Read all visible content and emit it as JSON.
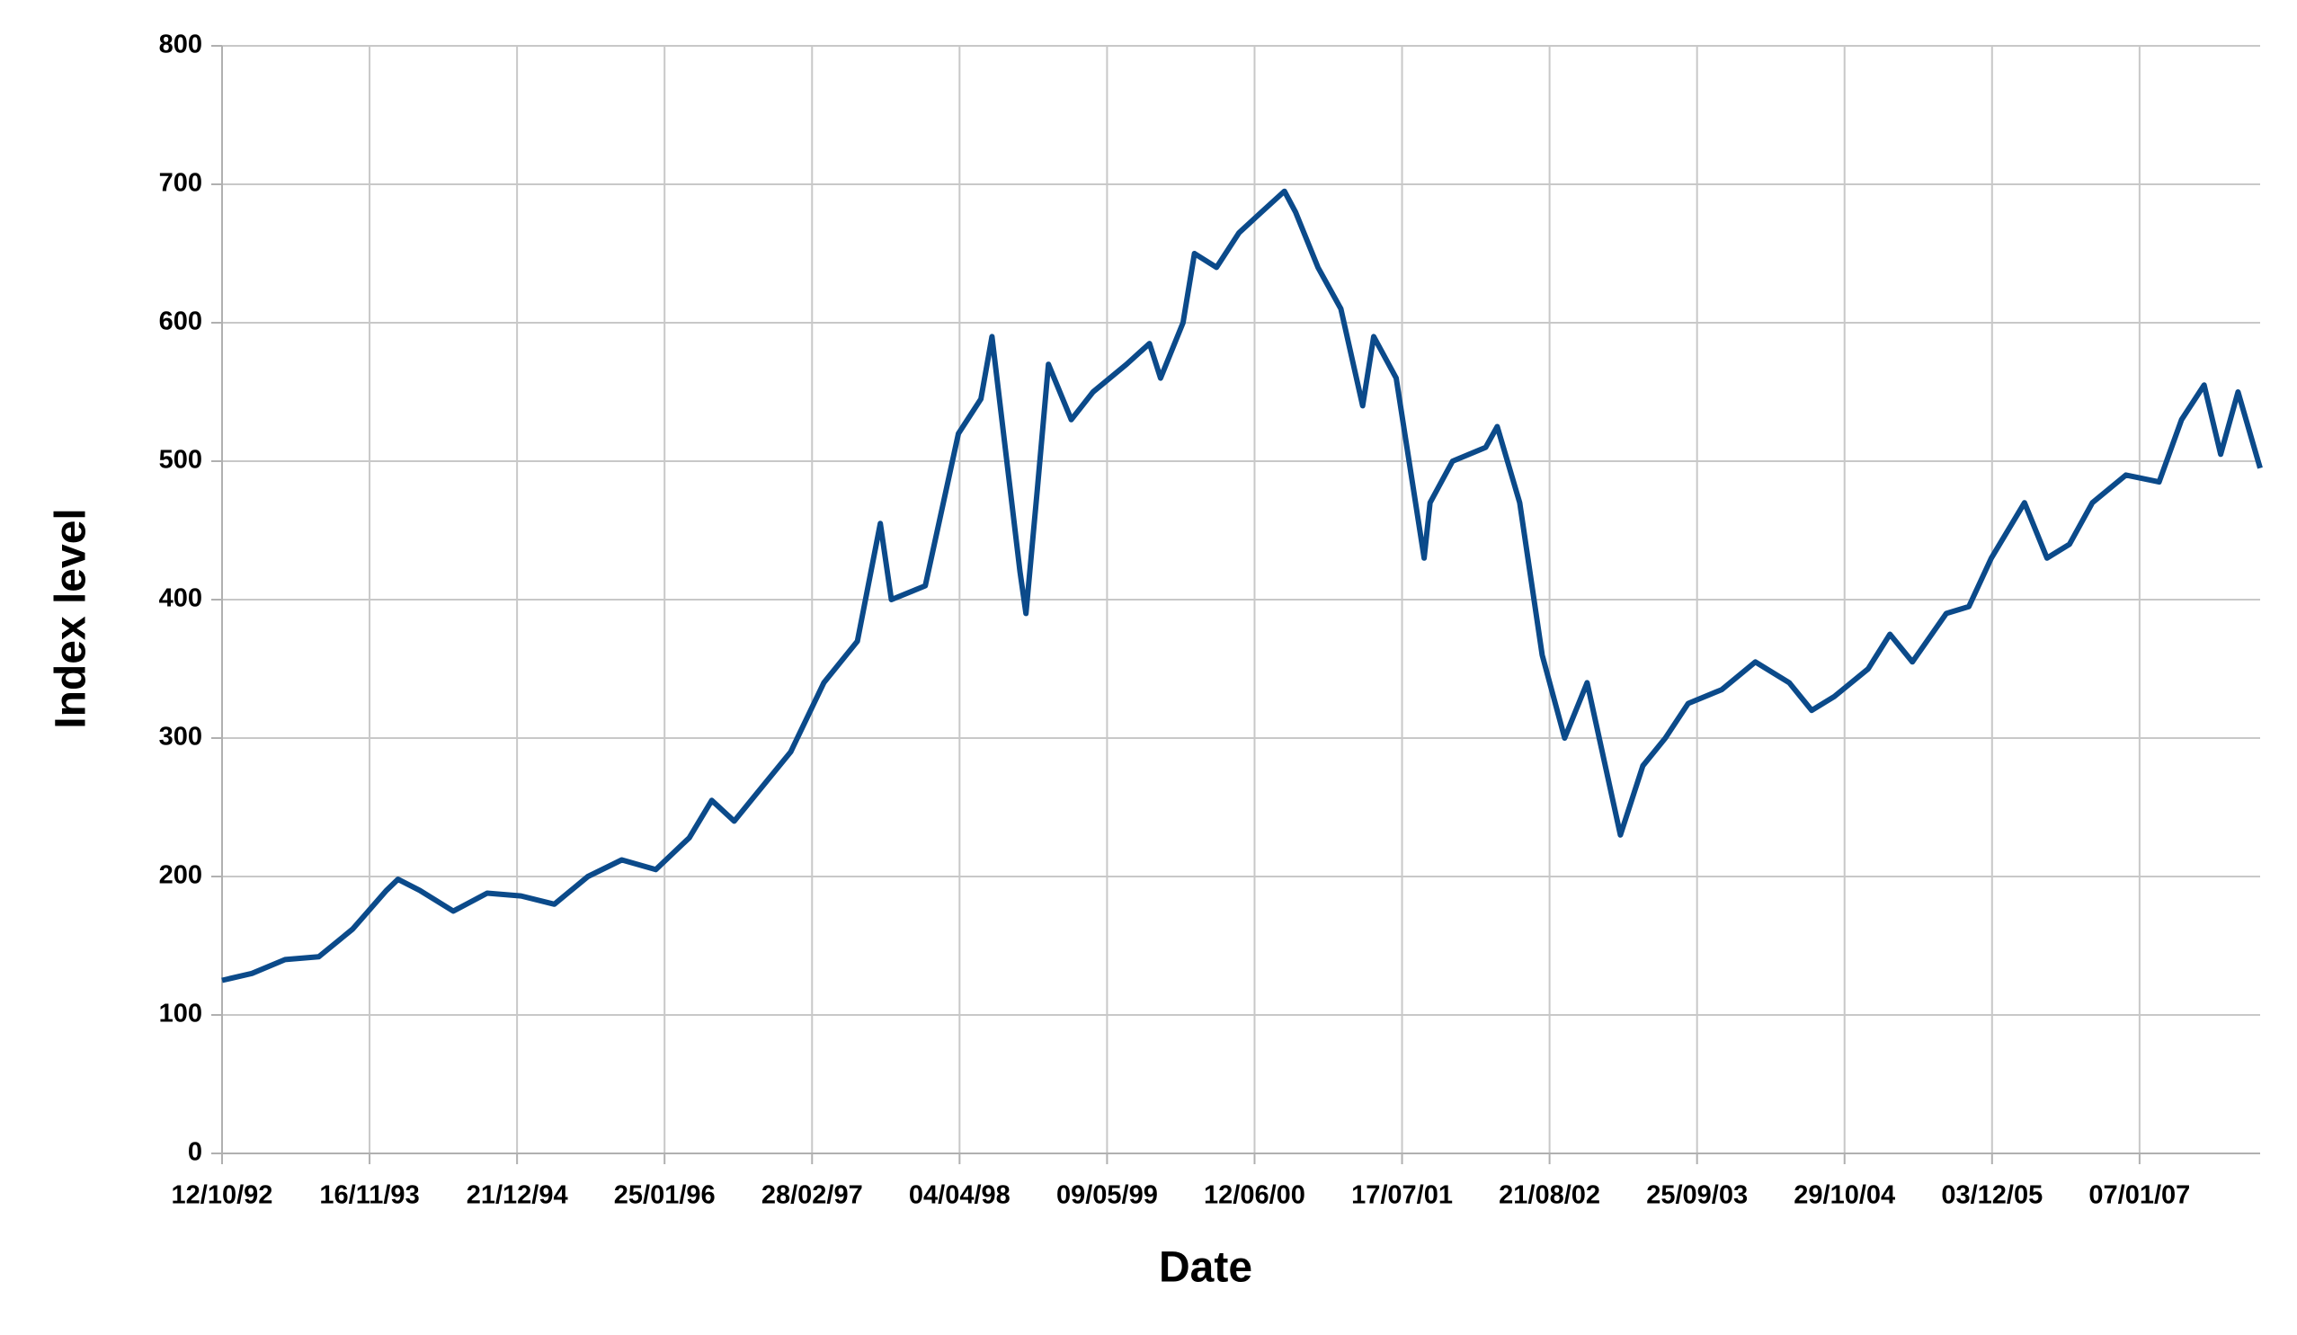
{
  "chart_data": {
    "type": "line",
    "x_label": "Date",
    "y_label": "Index level",
    "color": "#0b4a8a",
    "grid": true,
    "xlim": [
      "12/10/92",
      "30/11/07"
    ],
    "xticks": [
      "12/10/92",
      "16/11/93",
      "21/12/94",
      "25/01/96",
      "28/02/97",
      "04/04/98",
      "09/05/99",
      "12/06/00",
      "17/07/01",
      "21/08/02",
      "25/09/03",
      "29/10/04",
      "03/12/05",
      "07/01/07"
    ],
    "ylim": [
      0,
      800
    ],
    "yticks": [
      0,
      100,
      200,
      300,
      400,
      500,
      600,
      700,
      800
    ],
    "x": [
      "12/10/92",
      "01/01/93",
      "01/04/93",
      "01/07/93",
      "01/10/93",
      "01/01/94",
      "01/02/94",
      "01/04/94",
      "01/07/94",
      "01/10/94",
      "01/01/95",
      "01/04/95",
      "01/07/95",
      "01/10/95",
      "01/01/96",
      "01/04/96",
      "01/06/96",
      "01/08/96",
      "01/10/96",
      "01/01/97",
      "01/04/97",
      "01/07/97",
      "01/09/97",
      "01/10/97",
      "01/01/98",
      "01/04/98",
      "01/06/98",
      "01/07/98",
      "15/09/98",
      "01/10/98",
      "01/11/98",
      "01/12/98",
      "01/02/99",
      "01/04/99",
      "01/07/99",
      "01/09/99",
      "01/10/99",
      "01/12/99",
      "01/01/00",
      "01/03/00",
      "01/05/00",
      "01/07/00",
      "01/09/00",
      "01/10/00",
      "01/12/00",
      "01/02/01",
      "01/04/01",
      "01/05/01",
      "01/07/01",
      "15/09/01",
      "01/10/01",
      "01/12/01",
      "01/03/02",
      "01/04/02",
      "01/06/02",
      "01/08/02",
      "01/10/02",
      "01/12/02",
      "01/03/03",
      "01/05/03",
      "01/07/03",
      "01/09/03",
      "01/12/03",
      "01/03/04",
      "01/06/04",
      "01/08/04",
      "01/10/04",
      "01/01/05",
      "01/03/05",
      "01/05/05",
      "01/08/05",
      "01/10/05",
      "01/12/05",
      "01/03/06",
      "01/05/06",
      "01/07/06",
      "01/09/06",
      "01/12/06",
      "01/03/07",
      "01/05/07",
      "01/07/07",
      "15/08/07",
      "01/10/07",
      "30/11/07"
    ],
    "values": [
      125,
      130,
      140,
      142,
      162,
      190,
      198,
      190,
      175,
      188,
      186,
      180,
      200,
      212,
      205,
      228,
      255,
      240,
      260,
      290,
      340,
      370,
      455,
      400,
      410,
      520,
      545,
      590,
      420,
      390,
      480,
      570,
      530,
      550,
      570,
      585,
      560,
      600,
      650,
      640,
      665,
      680,
      695,
      680,
      640,
      610,
      540,
      590,
      560,
      430,
      470,
      500,
      510,
      525,
      470,
      360,
      300,
      340,
      230,
      280,
      300,
      325,
      335,
      355,
      340,
      320,
      330,
      350,
      375,
      355,
      390,
      395,
      430,
      470,
      430,
      440,
      470,
      490,
      485,
      530,
      555,
      505,
      550,
      495
    ]
  }
}
